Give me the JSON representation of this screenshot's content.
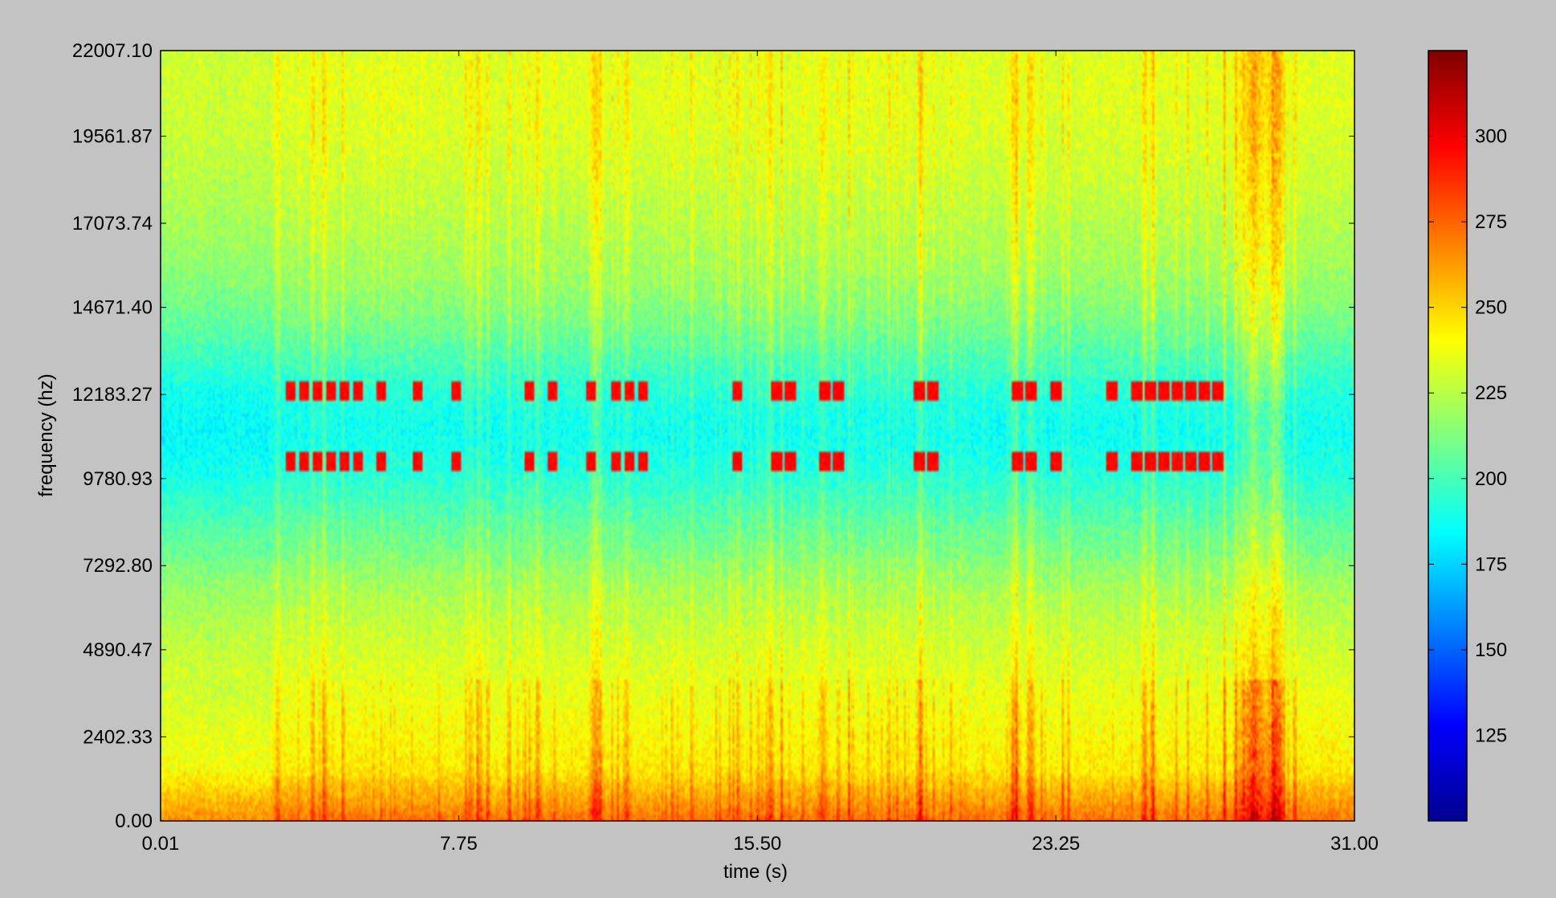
{
  "chart_data": {
    "type": "heatmap",
    "title": "",
    "xlabel": "time (s)",
    "ylabel": "frequency (hz)",
    "xlim": [
      0.01,
      31.0
    ],
    "ylim": [
      0.0,
      22007.1
    ],
    "x_ticks": [
      "0.01",
      "7.75",
      "15.50",
      "23.25",
      "31.00"
    ],
    "y_ticks": [
      "0.00",
      "2402.33",
      "4890.47",
      "7292.80",
      "9780.93",
      "12183.27",
      "14671.40",
      "17073.74",
      "19561.87",
      "22007.10"
    ],
    "colorbar": {
      "colormap": "jet",
      "range": [
        100,
        325
      ],
      "ticks": [
        "125",
        "150",
        "175",
        "200",
        "225",
        "250",
        "275",
        "300"
      ]
    },
    "tone_bands_hz": [
      10250,
      12300
    ],
    "tone_events_s": [
      3.4,
      3.75,
      4.1,
      4.45,
      4.8,
      5.15,
      5.75,
      6.7,
      7.7,
      9.6,
      10.2,
      11.2,
      11.85,
      12.2,
      12.55,
      15.0,
      16.0,
      16.35,
      17.25,
      17.6,
      19.7,
      20.05,
      22.25,
      22.6,
      23.25,
      24.7,
      25.35,
      25.7,
      26.05,
      26.4,
      26.75,
      27.1,
      27.45
    ],
    "broadband_bursts_s": [
      {
        "t": 3.05,
        "w": 0.08,
        "a": 0.7
      },
      {
        "t": 4.3,
        "w": 0.05,
        "a": 0.8
      },
      {
        "t": 4.75,
        "w": 0.06,
        "a": 0.9
      },
      {
        "t": 8.05,
        "w": 0.12,
        "a": 0.7
      },
      {
        "t": 9.8,
        "w": 0.1,
        "a": 0.9
      },
      {
        "t": 11.3,
        "w": 0.22,
        "a": 1.0
      },
      {
        "t": 12.1,
        "w": 0.1,
        "a": 0.8
      },
      {
        "t": 15.0,
        "w": 0.06,
        "a": 1.0
      },
      {
        "t": 15.85,
        "w": 0.12,
        "a": 0.9
      },
      {
        "t": 17.2,
        "w": 0.15,
        "a": 0.7
      },
      {
        "t": 19.7,
        "w": 0.12,
        "a": 0.8
      },
      {
        "t": 22.2,
        "w": 0.2,
        "a": 0.8
      },
      {
        "t": 22.6,
        "w": 0.15,
        "a": 0.9
      },
      {
        "t": 25.55,
        "w": 0.1,
        "a": 1.0
      },
      {
        "t": 25.75,
        "w": 0.1,
        "a": 0.9
      },
      {
        "t": 28.4,
        "w": 0.25,
        "a": 1.0
      },
      {
        "t": 28.95,
        "w": 0.25,
        "a": 1.0
      },
      {
        "t": 29.45,
        "w": 0.07,
        "a": 0.9
      }
    ]
  }
}
